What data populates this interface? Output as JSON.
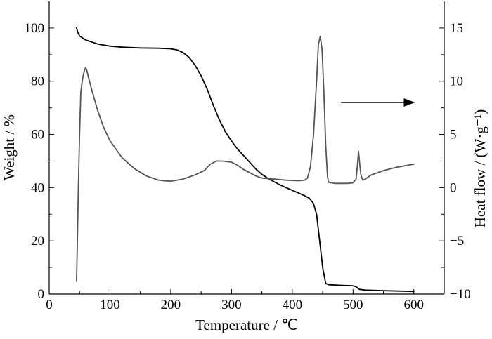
{
  "chart_data": {
    "type": "line",
    "xlabel": "Temperature / ℃",
    "ylabel_left": "Weight / %",
    "ylabel_right": "Heat flow / (W·g⁻¹)",
    "xlim": [
      0,
      650
    ],
    "ylim_left": [
      0,
      110
    ],
    "ylim_right": [
      -10,
      17.5
    ],
    "x_ticks": [
      0,
      100,
      200,
      300,
      400,
      500,
      600
    ],
    "y_left_ticks": [
      0,
      20,
      40,
      60,
      80,
      100
    ],
    "y_right_ticks": [
      -10,
      -5,
      0,
      5,
      10,
      15
    ],
    "y_right_tick_labels": [
      "−10",
      "−5",
      "0",
      "5",
      "10",
      "15"
    ],
    "annotation": {
      "type": "arrow",
      "direction": "right",
      "points_to_axis": "right",
      "from": [
        480,
        8
      ],
      "to": [
        602,
        8
      ]
    },
    "series": [
      {
        "axis": "left",
        "color": "#000000",
        "points": [
          [
            45,
            100
          ],
          [
            47,
            98.5
          ],
          [
            50,
            97
          ],
          [
            60,
            95.5
          ],
          [
            80,
            94
          ],
          [
            100,
            93.2
          ],
          [
            120,
            92.8
          ],
          [
            150,
            92.5
          ],
          [
            180,
            92.4
          ],
          [
            200,
            92.2
          ],
          [
            210,
            91.8
          ],
          [
            220,
            90.8
          ],
          [
            230,
            89
          ],
          [
            240,
            86
          ],
          [
            250,
            82
          ],
          [
            260,
            77
          ],
          [
            270,
            71
          ],
          [
            280,
            65.5
          ],
          [
            290,
            61
          ],
          [
            300,
            57.5
          ],
          [
            310,
            54.5
          ],
          [
            320,
            52
          ],
          [
            330,
            49.5
          ],
          [
            340,
            47
          ],
          [
            350,
            45
          ],
          [
            360,
            43.5
          ],
          [
            370,
            42.2
          ],
          [
            380,
            41
          ],
          [
            390,
            40
          ],
          [
            400,
            39
          ],
          [
            410,
            38
          ],
          [
            420,
            37
          ],
          [
            428,
            36
          ],
          [
            435,
            34
          ],
          [
            440,
            30
          ],
          [
            445,
            20
          ],
          [
            450,
            10
          ],
          [
            455,
            4
          ],
          [
            460,
            3.5
          ],
          [
            480,
            3.3
          ],
          [
            500,
            3.1
          ],
          [
            505,
            2.8
          ],
          [
            510,
            1.8
          ],
          [
            520,
            1.5
          ],
          [
            550,
            1.3
          ],
          [
            580,
            1.1
          ],
          [
            600,
            1
          ]
        ]
      },
      {
        "axis": "right",
        "color": "#555555",
        "points": [
          [
            45,
            -8.8
          ],
          [
            46,
            -6
          ],
          [
            48,
            0
          ],
          [
            50,
            5
          ],
          [
            52,
            9
          ],
          [
            55,
            10.3
          ],
          [
            58,
            11
          ],
          [
            60,
            11.3
          ],
          [
            62,
            11
          ],
          [
            65,
            10.3
          ],
          [
            70,
            9.2
          ],
          [
            80,
            7.2
          ],
          [
            90,
            5.6
          ],
          [
            100,
            4.4
          ],
          [
            120,
            2.8
          ],
          [
            140,
            1.8
          ],
          [
            160,
            1.1
          ],
          [
            180,
            0.7
          ],
          [
            200,
            0.6
          ],
          [
            220,
            0.8
          ],
          [
            240,
            1.2
          ],
          [
            255,
            1.6
          ],
          [
            265,
            2.2
          ],
          [
            275,
            2.5
          ],
          [
            285,
            2.5
          ],
          [
            300,
            2.4
          ],
          [
            310,
            2.1
          ],
          [
            320,
            1.7
          ],
          [
            330,
            1.4
          ],
          [
            340,
            1.1
          ],
          [
            350,
            0.9
          ],
          [
            370,
            0.8
          ],
          [
            390,
            0.7
          ],
          [
            410,
            0.65
          ],
          [
            420,
            0.7
          ],
          [
            425,
            0.9
          ],
          [
            430,
            2
          ],
          [
            435,
            5
          ],
          [
            440,
            10
          ],
          [
            443,
            13.5
          ],
          [
            446,
            14.2
          ],
          [
            449,
            13
          ],
          [
            452,
            9
          ],
          [
            455,
            4
          ],
          [
            458,
            1
          ],
          [
            460,
            0.5
          ],
          [
            470,
            0.4
          ],
          [
            490,
            0.4
          ],
          [
            500,
            0.45
          ],
          [
            505,
            0.8
          ],
          [
            507,
            2
          ],
          [
            509,
            3.4
          ],
          [
            511,
            2.2
          ],
          [
            513,
            1.2
          ],
          [
            516,
            0.7
          ],
          [
            520,
            0.8
          ],
          [
            530,
            1.2
          ],
          [
            550,
            1.6
          ],
          [
            570,
            1.9
          ],
          [
            590,
            2.1
          ],
          [
            600,
            2.2
          ]
        ]
      }
    ]
  }
}
